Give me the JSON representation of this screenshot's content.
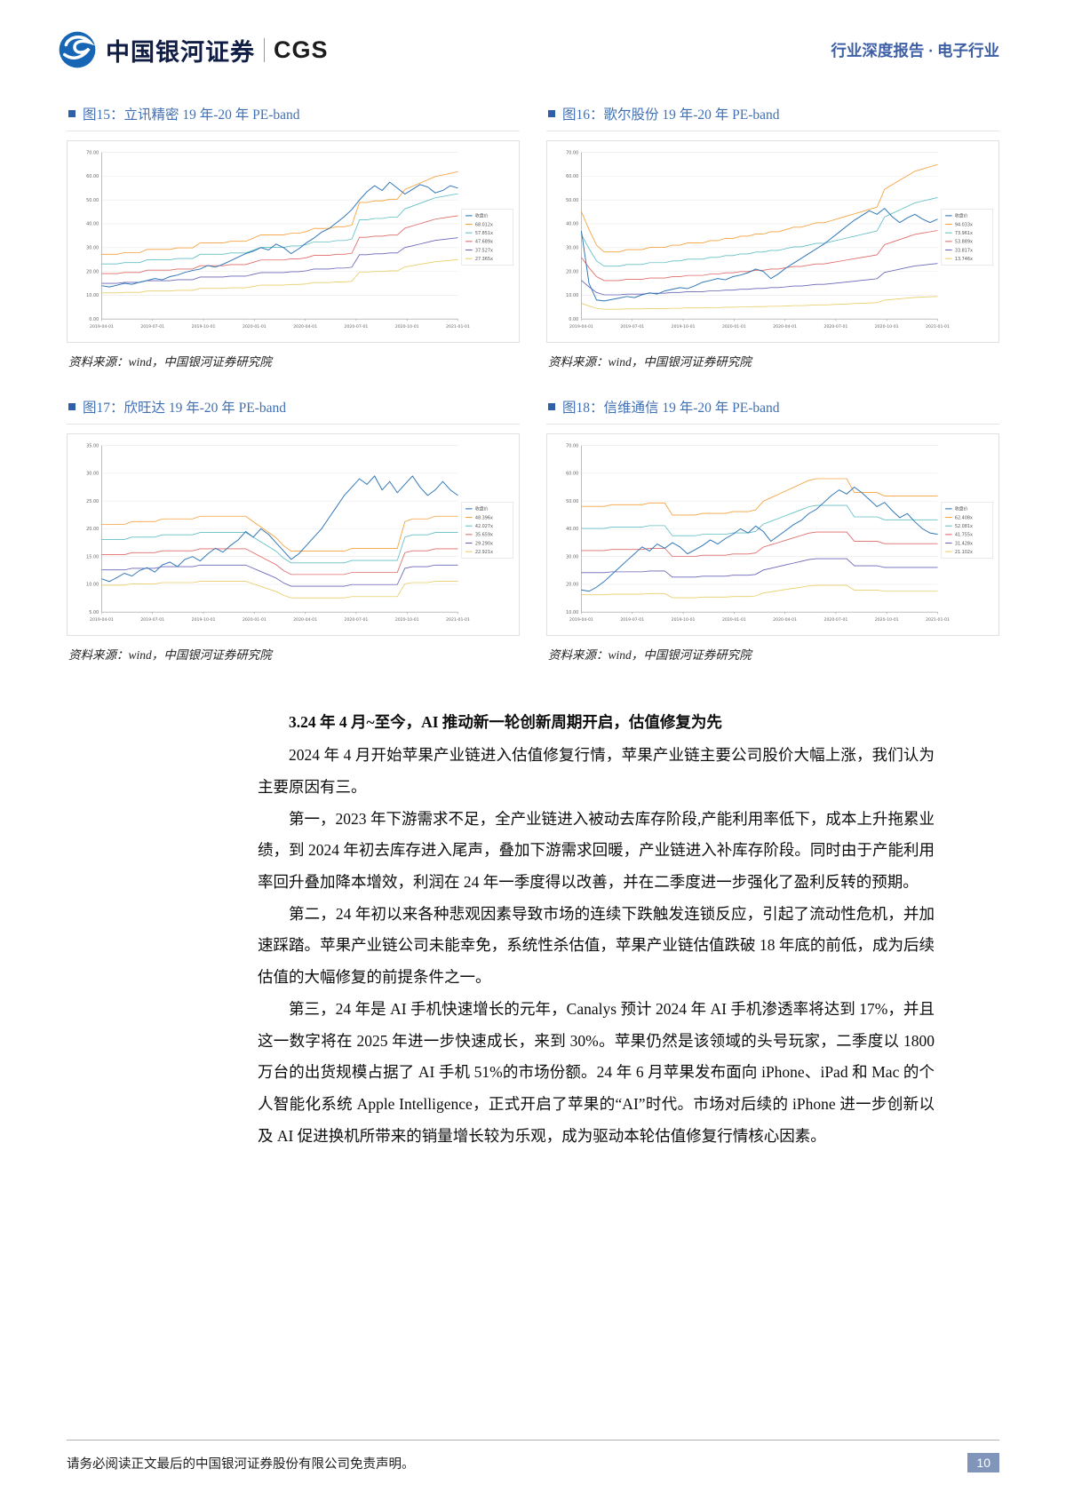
{
  "header": {
    "brand_cn": "中国银河证券",
    "brand_en": "CGS",
    "right_label": "行业深度报告 · 电子行业"
  },
  "chart_style": {
    "price_color": "#2e75b6",
    "band_colors": [
      "#f6a13c",
      "#63bfc6",
      "#e06a6a",
      "#6a66b8",
      "#e8cf6a"
    ],
    "grid_color": "#e8e8e8",
    "axis_color": "#9a9a9a"
  },
  "chart_data": [
    {
      "type": "line",
      "title": "图15：立讯精密 19 年-20 年 PE-band",
      "source": "资料来源：wind，中国银河证券研究院",
      "price_label": "收盘价",
      "multipliers": [
        68.012,
        57.851,
        47.689,
        37.527,
        27.365
      ],
      "legend": [
        "收盘价",
        "68.012x",
        "57.851x",
        "47.689x",
        "37.527x",
        "27.365x"
      ],
      "x_ticks": [
        "2019-04-01",
        "2019-07-01",
        "2019-10-01",
        "2020-01-01",
        "2020-04-01",
        "2020-07-01",
        "2020-10-01",
        "2021-01-01"
      ],
      "ylim": [
        0,
        70
      ],
      "ystep": 10,
      "grid": true,
      "legend_position": "right",
      "price": [
        14.0,
        13.5,
        14.2,
        15.0,
        14.6,
        15.5,
        16.2,
        17.0,
        16.5,
        17.8,
        18.5,
        19.6,
        20.4,
        21.0,
        22.5,
        21.8,
        23.0,
        24.5,
        26.0,
        27.5,
        28.5,
        30.0,
        29.0,
        31.5,
        30.0,
        27.5,
        29.5,
        32.0,
        34.0,
        36.5,
        38.0,
        40.5,
        43.0,
        46.0,
        50.0,
        53.5,
        56.0,
        54.0,
        57.5,
        55.0,
        52.5,
        54.5,
        56.5,
        55.5,
        53.0,
        54.0,
        56.0,
        55.0
      ],
      "base": [
        0.4,
        0.4,
        0.4,
        0.41,
        0.41,
        0.41,
        0.43,
        0.43,
        0.43,
        0.43,
        0.44,
        0.44,
        0.44,
        0.47,
        0.47,
        0.47,
        0.47,
        0.48,
        0.48,
        0.48,
        0.5,
        0.52,
        0.52,
        0.52,
        0.52,
        0.53,
        0.53,
        0.54,
        0.56,
        0.56,
        0.56,
        0.57,
        0.57,
        0.58,
        0.72,
        0.72,
        0.73,
        0.73,
        0.74,
        0.74,
        0.8,
        0.82,
        0.84,
        0.86,
        0.88,
        0.89,
        0.9,
        0.91
      ]
    },
    {
      "type": "line",
      "title": "图16：歌尔股份 19 年-20 年 PE-band",
      "source": "资料来源：wind，中国银河证券研究院",
      "price_label": "收盘价",
      "multipliers": [
        94.033,
        73.961,
        53.889,
        33.817,
        13.746
      ],
      "legend": [
        "收盘价",
        "94.033x",
        "73.961x",
        "53.889x",
        "33.817x",
        "13.746x"
      ],
      "x_ticks": [
        "2019-04-01",
        "2019-07-01",
        "2019-10-01",
        "2020-01-01",
        "2020-04-01",
        "2020-07-01",
        "2020-10-01",
        "2021-01-01"
      ],
      "ylim": [
        0,
        70
      ],
      "ystep": 10,
      "grid": true,
      "legend_position": "right",
      "price": [
        37.0,
        15.0,
        8.0,
        7.6,
        8.2,
        8.8,
        9.5,
        9.0,
        10.2,
        11.0,
        10.5,
        11.8,
        12.5,
        13.2,
        12.8,
        14.0,
        15.5,
        16.2,
        17.0,
        16.5,
        17.8,
        18.5,
        19.5,
        21.0,
        20.0,
        17.0,
        19.0,
        21.5,
        23.5,
        25.5,
        27.5,
        29.5,
        31.5,
        34.0,
        36.5,
        39.0,
        41.5,
        43.5,
        45.5,
        44.0,
        46.5,
        43.0,
        40.5,
        42.5,
        44.0,
        42.0,
        40.5,
        42.0
      ],
      "base": [
        0.48,
        0.4,
        0.33,
        0.3,
        0.3,
        0.3,
        0.31,
        0.31,
        0.31,
        0.32,
        0.32,
        0.32,
        0.33,
        0.33,
        0.34,
        0.34,
        0.34,
        0.35,
        0.35,
        0.36,
        0.36,
        0.37,
        0.37,
        0.38,
        0.38,
        0.39,
        0.39,
        0.4,
        0.41,
        0.41,
        0.42,
        0.43,
        0.43,
        0.44,
        0.45,
        0.46,
        0.47,
        0.48,
        0.49,
        0.5,
        0.58,
        0.6,
        0.62,
        0.64,
        0.66,
        0.67,
        0.68,
        0.69
      ]
    },
    {
      "type": "line",
      "title": "图17：欣旺达 19 年-20 年 PE-band",
      "source": "资料来源：wind，中国银河证券研究院",
      "price_label": "收盘价",
      "multipliers": [
        48.396,
        42.027,
        35.659,
        29.29,
        22.921
      ],
      "legend": [
        "收盘价",
        "48.396x",
        "42.027x",
        "35.659x",
        "29.290x",
        "22.921x"
      ],
      "x_ticks": [
        "2019-04-01",
        "2019-07-01",
        "2019-10-01",
        "2020-01-01",
        "2020-04-01",
        "2020-07-01",
        "2020-10-01",
        "2021-01-01"
      ],
      "ylim": [
        5,
        35
      ],
      "ystep": 5,
      "grid": true,
      "legend_position": "right",
      "price": [
        11.0,
        10.5,
        11.2,
        12.0,
        11.5,
        12.5,
        13.0,
        12.2,
        13.5,
        14.0,
        13.2,
        14.5,
        15.0,
        14.2,
        15.5,
        16.5,
        15.8,
        17.0,
        18.0,
        19.5,
        18.5,
        20.0,
        19.0,
        17.5,
        16.0,
        14.5,
        15.5,
        17.0,
        18.5,
        20.0,
        22.0,
        24.0,
        26.0,
        27.5,
        29.0,
        28.0,
        29.5,
        27.0,
        28.5,
        26.5,
        28.0,
        29.5,
        27.5,
        26.0,
        27.0,
        28.5,
        27.0,
        26.0
      ],
      "base": [
        0.43,
        0.43,
        0.43,
        0.43,
        0.44,
        0.44,
        0.44,
        0.44,
        0.45,
        0.45,
        0.45,
        0.45,
        0.45,
        0.46,
        0.46,
        0.46,
        0.46,
        0.46,
        0.46,
        0.46,
        0.44,
        0.42,
        0.4,
        0.38,
        0.35,
        0.33,
        0.33,
        0.33,
        0.33,
        0.33,
        0.33,
        0.33,
        0.33,
        0.34,
        0.34,
        0.34,
        0.34,
        0.34,
        0.34,
        0.34,
        0.44,
        0.45,
        0.45,
        0.45,
        0.46,
        0.46,
        0.46,
        0.46
      ]
    },
    {
      "type": "line",
      "title": "图18：信维通信 19 年-20 年 PE-band",
      "source": "资料来源：wind，中国银河证券研究院",
      "price_label": "收盘价",
      "multipliers": [
        62.408,
        52.081,
        41.755,
        31.428,
        21.102
      ],
      "legend": [
        "收盘价",
        "62.408x",
        "52.081x",
        "41.755x",
        "31.428x",
        "21.102x"
      ],
      "x_ticks": [
        "2019-04-01",
        "2019-07-01",
        "2019-10-01",
        "2020-01-01",
        "2020-04-01",
        "2020-07-01",
        "2020-10-01",
        "2021-01-01"
      ],
      "ylim": [
        10,
        70
      ],
      "ystep": 10,
      "grid": true,
      "legend_position": "right",
      "price": [
        18.0,
        17.5,
        19.0,
        21.0,
        23.5,
        26.0,
        28.5,
        31.0,
        33.5,
        32.0,
        34.5,
        33.0,
        35.0,
        33.5,
        31.0,
        32.5,
        34.0,
        36.0,
        34.5,
        36.5,
        38.0,
        40.0,
        38.5,
        41.0,
        39.0,
        35.5,
        37.5,
        39.5,
        41.5,
        43.0,
        45.5,
        47.0,
        49.5,
        52.0,
        54.0,
        52.5,
        55.0,
        53.0,
        50.5,
        48.0,
        49.5,
        46.5,
        44.0,
        45.5,
        42.5,
        40.0,
        38.5,
        38.0
      ],
      "base": [
        0.77,
        0.77,
        0.77,
        0.77,
        0.78,
        0.78,
        0.78,
        0.78,
        0.78,
        0.79,
        0.79,
        0.79,
        0.72,
        0.72,
        0.72,
        0.72,
        0.73,
        0.73,
        0.73,
        0.73,
        0.74,
        0.74,
        0.74,
        0.75,
        0.8,
        0.82,
        0.84,
        0.86,
        0.88,
        0.9,
        0.92,
        0.93,
        0.93,
        0.93,
        0.93,
        0.93,
        0.85,
        0.85,
        0.85,
        0.85,
        0.83,
        0.83,
        0.83,
        0.83,
        0.83,
        0.83,
        0.83,
        0.83
      ]
    }
  ],
  "section": {
    "heading": "3.24 年 4 月~至今，AI 推动新一轮创新周期开启，估值修复为先",
    "paragraphs": [
      "2024 年 4 月开始苹果产业链进入估值修复行情，苹果产业链主要公司股价大幅上涨，我们认为主要原因有三。",
      "第一，2023 年下游需求不足，全产业链进入被动去库存阶段,产能利用率低下，成本上升拖累业绩，到 2024 年初去库存进入尾声，叠加下游需求回暖，产业链进入补库存阶段。同时由于产能利用率回升叠加降本增效，利润在 24 年一季度得以改善，并在二季度进一步强化了盈利反转的预期。",
      "第二，24 年初以来各种悲观因素导致市场的连续下跌触发连锁反应，引起了流动性危机，并加速踩踏。苹果产业链公司未能幸免，系统性杀估值，苹果产业链估值跌破 18 年底的前低，成为后续估值的大幅修复的前提条件之一。",
      "第三，24 年是 AI 手机快速增长的元年，Canalys 预计 2024 年 AI 手机渗透率将达到 17%，并且这一数字将在 2025 年进一步快速成长，来到 30%。苹果仍然是该领域的头号玩家，二季度以 1800 万台的出货规模占据了 AI 手机 51%的市场份额。24 年 6 月苹果发布面向 iPhone、iPad 和 Mac 的个人智能化系统 Apple Intelligence，正式开启了苹果的“AI”时代。市场对后续的 iPhone 进一步创新以及 AI 促进换机所带来的销量增长较为乐观，成为驱动本轮估值修复行情核心因素。"
    ]
  },
  "footer": {
    "disclaimer": "请务必阅读正文最后的中国银河证券股份有限公司免责声明。",
    "page_number": "10"
  }
}
